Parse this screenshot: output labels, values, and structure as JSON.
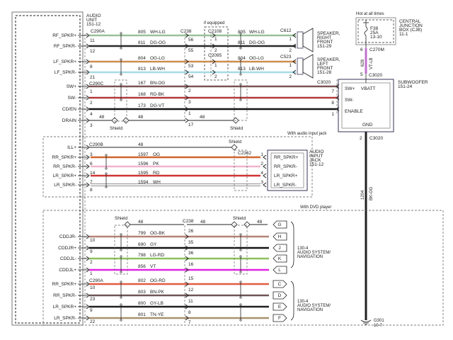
{
  "audio_unit": {
    "title": [
      "AUDIO",
      "UNIT",
      "151-12"
    ]
  },
  "connectors": {
    "c290a": "C290A",
    "c290c": "C290C",
    "c290b": "C290B",
    "c238": "C238",
    "c2108": "C2108",
    "c2095": "C2095",
    "c612": "C612",
    "c523": "C523",
    "c3020": "C3020",
    "c2362": "C2362",
    "c270m": "C270M",
    "c290a_dvd": "C290A",
    "c238_dvd": "C238"
  },
  "labels": {
    "if_equipped": "if equipped",
    "with_audio_input_jack": "With audio input jack",
    "with_dvd_player": "With DVD player",
    "shield": "Shield",
    "hot_at_all_times": "Hot at all times"
  },
  "speakers": {
    "right_front": [
      "SPEAKER,",
      "RIGHT",
      "FRONT",
      "151-29"
    ],
    "left_front": [
      "SPEAKER,",
      "LEFT",
      "FRONT",
      "151-28"
    ]
  },
  "cjb": {
    "title": [
      "CENTRAL",
      "JUNCTION",
      "BOX (CJB)",
      "11-1"
    ],
    "fuse": [
      "F38",
      "25A",
      "13-10"
    ]
  },
  "subwoofer": {
    "title": [
      "SUBWOOFER",
      "151-24"
    ],
    "pins": [
      "SW+",
      "VBATT",
      "SW-",
      "ENABLE",
      "GND"
    ],
    "feed_circuit": "628",
    "feed_color": "VT-LB",
    "feed_pins": [
      "6",
      "5"
    ],
    "gnd_pin": "2",
    "gnd_circuit": "1204",
    "gnd_color": "BK-OG",
    "ground": [
      "G301",
      "10-7"
    ]
  },
  "audio_jack": {
    "title": [
      "AUDIO",
      "INPUT",
      "JACK",
      "151-12"
    ],
    "pins": [
      "RR_SPKR+",
      "RR_SPKR-",
      "LR_SPKR+",
      "LR_SPKR-"
    ],
    "pin_numbers": [
      "1",
      "2",
      "4",
      "3"
    ]
  },
  "nav": {
    "title": [
      "130-4",
      "AUDIO SYSTEM/",
      "NAVIGATION"
    ]
  },
  "top_wires": [
    {
      "signal": "RF_SPKR+",
      "pin": "11",
      "circuit": "805",
      "color": "WH-LG",
      "hex": "#98c098",
      "mid_pin": "56",
      "eq_pin": "1",
      "end_pin": "1"
    },
    {
      "signal": "RF_SPKR-",
      "pin": "12",
      "circuit": "811",
      "color": "DG-OG",
      "hex": "#2a2a2a",
      "mid_pin": "55",
      "eq_pin": "2",
      "end_pin": "2"
    },
    {
      "signal": "LF_SPKR+",
      "pin": "8",
      "circuit": "804",
      "color": "OG-LG",
      "hex": "#cf8c4e",
      "mid_pin": "53",
      "eq_pin": "1",
      "end_pin": "1"
    },
    {
      "signal": "LF_SPKR-",
      "pin": "21",
      "circuit": "813",
      "color": "LB-WH",
      "hex": "#a6dbe3",
      "mid_pin": "54",
      "eq_pin": "2",
      "end_pin": "2"
    },
    {
      "signal": "SW+",
      "pin": "1",
      "circuit": "167",
      "color": "BN-OG",
      "hex": "#7b5454",
      "mid_pin": "2",
      "end_pin": "7"
    },
    {
      "signal": "SW-",
      "pin": "2",
      "circuit": "168",
      "color": "RD-BK",
      "hex": "#b3383a",
      "mid_pin": "3",
      "end_pin": "8"
    },
    {
      "signal": "CD/EN",
      "pin": "4",
      "circuit": "173",
      "color": "DG-VT",
      "hex": "#151515",
      "mid_pin": "1",
      "end_pin": "1"
    },
    {
      "signal": "DRAIN",
      "pin": "3",
      "circuit": "48",
      "color": "",
      "hex": "#222222",
      "mid_pin": "17",
      "mid_circuit": "48"
    }
  ],
  "jack_wires": [
    {
      "signal": "ILL+",
      "pin": "",
      "circuit": "48",
      "color": "",
      "hex": "#222222"
    },
    {
      "signal": "RR_SPKR+",
      "pin": "3",
      "circuit": "1597",
      "color": "OG",
      "hex": "#d0652e"
    },
    {
      "signal": "RR_SPKR-",
      "pin": "6",
      "circuit": "1596",
      "color": "PK",
      "hex": "#f0b4cc"
    },
    {
      "signal": "LR_SPKR+",
      "pin": "14",
      "circuit": "1595",
      "color": "RD",
      "hex": "#d03634"
    },
    {
      "signal": "LR_SPKR-",
      "pin": "7",
      "circuit": "1594",
      "color": "WH",
      "hex": "#f4f4f4"
    }
  ],
  "jack_extra_pin": "8",
  "dvd_wires": [
    {
      "signal": "",
      "pin": "",
      "circuit": "48",
      "color": "",
      "hex": "#222222",
      "mid_pin": "",
      "end": "G",
      "mid_circuit": "48",
      "end_circuit": "48"
    },
    {
      "signal": "CDDJR-",
      "pin": "10",
      "circuit": "799",
      "color": "OG-BK",
      "hex": "#b58377",
      "mid_pin": "26",
      "end": "H"
    },
    {
      "signal": "CDDJR+",
      "pin": "9",
      "circuit": "690",
      "color": "GY",
      "hex": "#151515",
      "mid_pin": "35",
      "end": "J"
    },
    {
      "signal": "CDDJL-",
      "pin": "2",
      "circuit": "798",
      "color": "LG-RD",
      "hex": "#8cc15e",
      "mid_pin": "36",
      "end": "K"
    },
    {
      "signal": "CDDJL+",
      "pin": "1",
      "circuit": "856",
      "color": "VT",
      "hex": "#e024e0",
      "mid_pin": "16",
      "end": "L"
    },
    {
      "signal": "RR_SPKR+",
      "pin": "10",
      "circuit": "802",
      "color": "OG-RD",
      "hex": "#e25a42",
      "mid_pin": "15",
      "end": "C"
    },
    {
      "signal": "RR_SPKR-",
      "pin": "23",
      "circuit": "803",
      "color": "BN-PK",
      "hex": "#6d5555",
      "mid_pin": "12",
      "end": "D"
    },
    {
      "signal": "LR_SPKR+",
      "pin": "9",
      "circuit": "800",
      "color": "GY-LB",
      "hex": "#202020",
      "mid_pin": "11",
      "end": "E"
    },
    {
      "signal": "LR_SPKR-",
      "pin": "22",
      "circuit": "801",
      "color": "TN-YE",
      "hex": "#a8916f",
      "mid_pin": "8",
      "end": "F"
    }
  ],
  "dvd_last_mid_pin": "7"
}
